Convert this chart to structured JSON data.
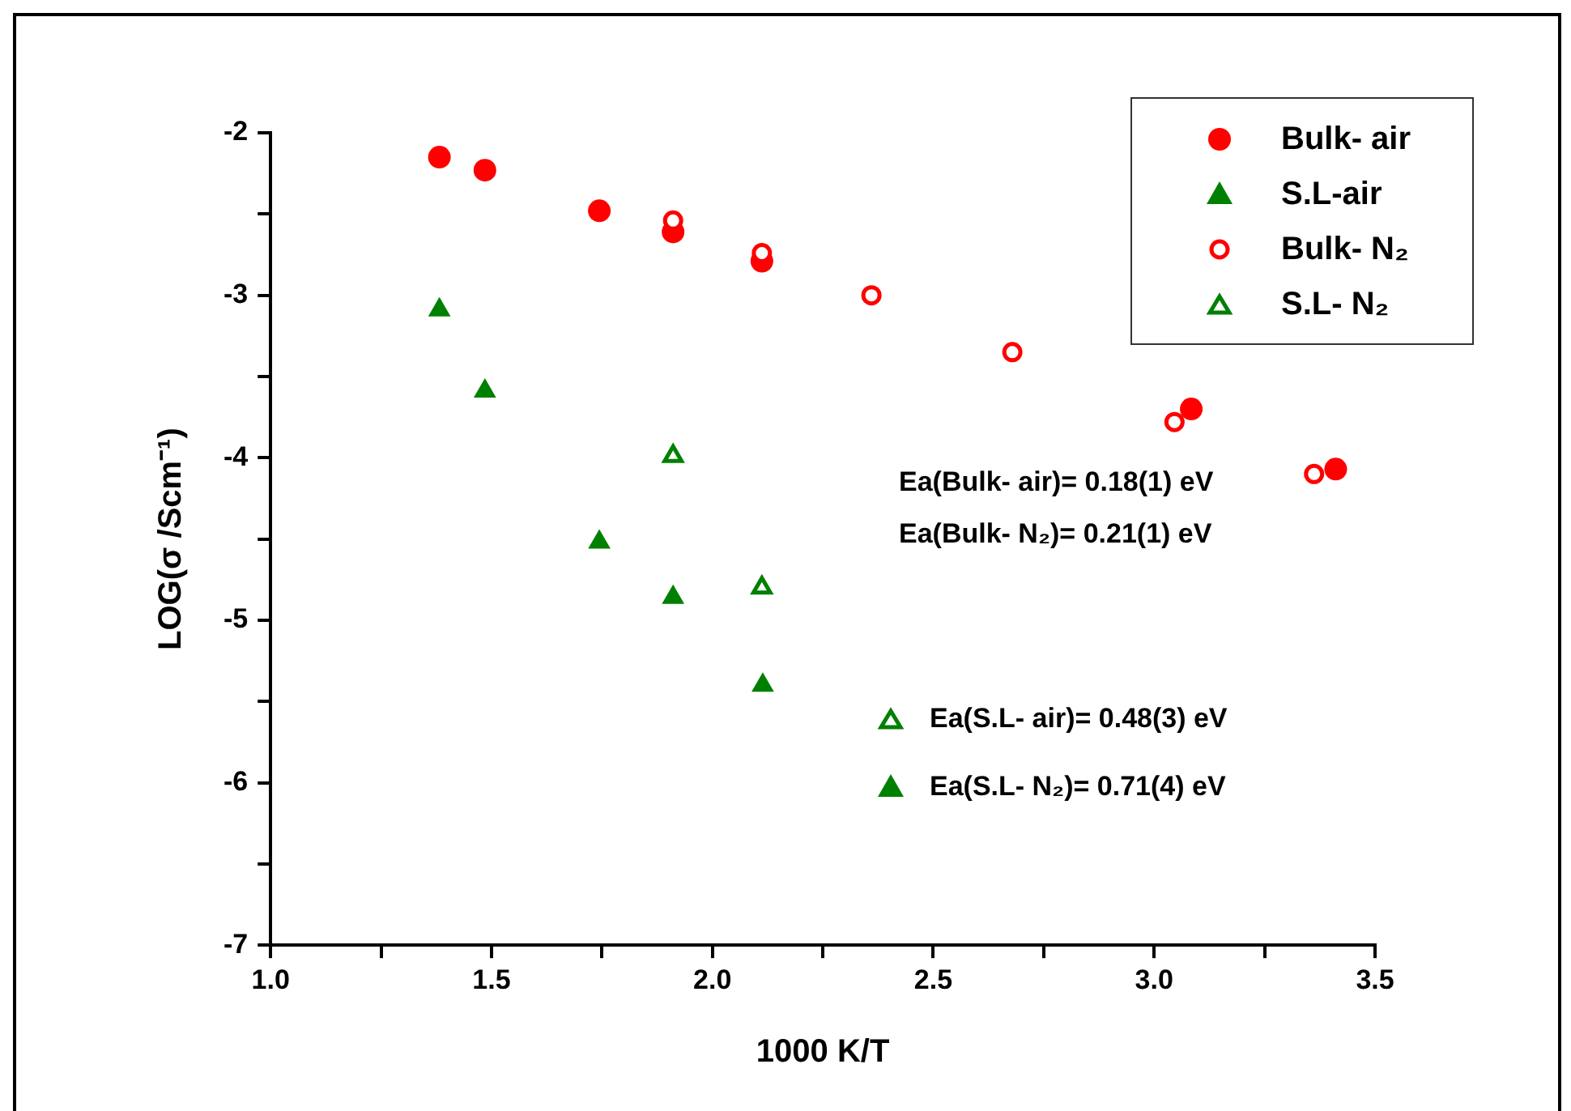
{
  "chart_data": {
    "type": "scatter",
    "xlabel": "1000 K/T",
    "ylabel": "LOG(σ /Scm⁻¹)",
    "xlim": [
      1.0,
      3.5
    ],
    "ylim": [
      -7,
      -2
    ],
    "xticks": [
      {
        "value": 1.0,
        "label": "1.0"
      },
      {
        "value": 1.25,
        "label": null
      },
      {
        "value": 1.5,
        "label": "1.5"
      },
      {
        "value": 1.75,
        "label": null
      },
      {
        "value": 2.0,
        "label": "2.0"
      },
      {
        "value": 2.25,
        "label": null
      },
      {
        "value": 2.5,
        "label": "2.5"
      },
      {
        "value": 2.75,
        "label": null
      },
      {
        "value": 3.0,
        "label": "3.0"
      },
      {
        "value": 3.25,
        "label": null
      },
      {
        "value": 3.5,
        "label": "3.5"
      }
    ],
    "yticks": [
      -7,
      {
        "value": -6.5,
        "label": null
      },
      -6,
      {
        "value": -5.5,
        "label": null
      },
      -5,
      {
        "value": -4.5,
        "label": null
      },
      -4,
      {
        "value": -3.5,
        "label": null
      },
      -3,
      {
        "value": -2.5,
        "label": null
      },
      -2
    ],
    "grid": false,
    "legend": "top right",
    "series": [
      {
        "name": "Bulk- air",
        "color": "#ff0000",
        "marker": "circle",
        "x": [
          1.382,
          1.485,
          1.744,
          1.911,
          2.112,
          3.084,
          3.411
        ],
        "values": [
          -2.15,
          -2.23,
          -2.48,
          -2.61,
          -2.79,
          -3.7,
          -4.07
        ]
      },
      {
        "name": "S.L-air",
        "color": "#008000",
        "marker": "triangle",
        "x": [
          1.382,
          1.485,
          1.744,
          1.911,
          2.114
        ],
        "values": [
          -3.09,
          -3.59,
          -4.52,
          -4.86,
          -5.4
        ]
      },
      {
        "name": "Bulk- N₂",
        "color": "#ff0000",
        "marker": "circle-open",
        "x": [
          1.911,
          2.112,
          2.36,
          2.679,
          3.046,
          3.362
        ],
        "values": [
          -2.54,
          -2.74,
          -3.0,
          -3.35,
          -3.78,
          -4.1
        ]
      },
      {
        "name": "S.L- N₂",
        "color": "#008000",
        "marker": "triangle-open",
        "x": [
          1.911,
          2.112
        ],
        "values": [
          -3.99,
          -4.8
        ]
      }
    ],
    "annotations": [
      "Ea(Bulk- air)= 0.18(1) eV",
      "Ea(Bulk- N₂)= 0.21(1) eV",
      "Ea(S.L- air)= 0.48(3) eV",
      "Ea(S.L- N₂)= 0.71(4) eV"
    ]
  }
}
